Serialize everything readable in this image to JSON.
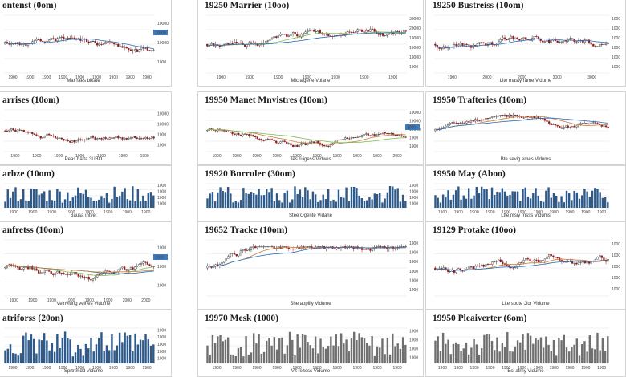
{
  "colors": {
    "up": "#2b2b2b",
    "down": "#8b1f1f",
    "bar": "#2d5a8a",
    "bar_gray": "#6f6f6f",
    "ma1": "#2a6bb0",
    "ma2": "#7dbb54",
    "ma3": "#c97a3a",
    "tag": "#3b7bbf"
  },
  "chart_data": [
    {
      "type": "candlestick",
      "title": "ontenst (0om)",
      "xlabel": "",
      "ticks_x": [
        "1900",
        "1900",
        "1900",
        "1900",
        "1900",
        "1900",
        "1900",
        "1900",
        "1900"
      ],
      "ticks_y": [
        "10000",
        "10000",
        "1000"
      ],
      "tag": "10000",
      "caption": "Mar raes bikate",
      "ylim": [
        0,
        100
      ],
      "series_name": "",
      "seed": 11,
      "trend": 0.0,
      "ma": [
        "ma1"
      ]
    },
    {
      "type": "candlestick",
      "title": "19250 Marrier (10oo)",
      "xlabel": "",
      "ticks_x": [
        "1900",
        "1900",
        "1900",
        "1900",
        "1900",
        "1900",
        "1900"
      ],
      "ticks_y": [
        "30000",
        "20000",
        "10000",
        "10000",
        "10000",
        "1000"
      ],
      "tag": "",
      "caption": "Mic algerie   Volane",
      "ylim": [
        0,
        100
      ],
      "seed": 22,
      "trend": 0.2,
      "ma": [
        "ma2",
        "ma1"
      ]
    },
    {
      "type": "candlestick",
      "title": "19250 Bustreiss (10om)",
      "xlabel": "",
      "ticks_x": [
        "1900",
        "2000",
        "2000",
        "3000",
        "3000"
      ],
      "ticks_y": [
        "1000",
        "1000",
        "1000",
        "1000",
        "1000",
        "1000"
      ],
      "tag": "",
      "caption": "Lite masty rame   Vidume",
      "ylim": [
        0,
        100
      ],
      "seed": 33,
      "trend": 0.0,
      "ma": [
        "ma1"
      ]
    },
    {
      "type": "candlestick",
      "title": "arrises (10om)",
      "xlabel": "",
      "ticks_x": [
        "1900",
        "1900",
        "1900",
        "1900",
        "1900",
        "1900",
        "1900"
      ],
      "ticks_y": [
        "10000",
        "10000",
        "1000",
        "1000"
      ],
      "tag": "",
      "caption": "Peas hatta 3UBO",
      "ylim": [
        0,
        100
      ],
      "seed": 44,
      "trend": -0.1,
      "ma": []
    },
    {
      "type": "candlestick",
      "title": "19950 Manet Mnvistres (10om)",
      "xlabel": "",
      "ticks_x": [
        "1900",
        "1900",
        "1900",
        "1900",
        "1900",
        "1900",
        "1900",
        "1900",
        "1900",
        "2000"
      ],
      "ticks_y": [
        "10000",
        "10000",
        "10000",
        "1000",
        "1000"
      ],
      "tag": "1000",
      "caption": "Tes ruigess   Vidwes",
      "ylim": [
        0,
        100
      ],
      "seed": 55,
      "trend": 0.0,
      "ma": [
        "ma3",
        "ma2"
      ]
    },
    {
      "type": "candlestick",
      "title": "19950 Trafteries (10om)",
      "xlabel": "",
      "ticks_x": [],
      "ticks_y": [],
      "tag": "",
      "caption": "Bte sevig emes   Vidums",
      "ylim": [
        0,
        100
      ],
      "seed": 66,
      "trend": 0.35,
      "ma": [
        "ma3",
        "ma1"
      ]
    },
    {
      "type": "bar",
      "title": "arbze (10om)",
      "xlabel": "",
      "ticks_x": [
        "1900",
        "1900",
        "1900",
        "1900",
        "1900",
        "1900",
        "1900",
        "1900"
      ],
      "ticks_y": [
        "1000",
        "1000",
        "1000",
        "1000"
      ],
      "tag": "",
      "caption": "Bausa intvet",
      "ylim": [
        0,
        100
      ],
      "seed": 77,
      "color": "bar"
    },
    {
      "type": "bar",
      "title": "19920 Bnrruler (30om)",
      "xlabel": "",
      "ticks_x": [],
      "ticks_y": [
        "1000",
        "1000",
        "1000",
        "1000"
      ],
      "tag": "",
      "caption": "Stee Ogente   Vidane",
      "ylim": [
        0,
        100
      ],
      "seed": 88,
      "color": "bar"
    },
    {
      "type": "bar",
      "title": "19950 May (Aboo)",
      "xlabel": "",
      "ticks_x": [
        "1900",
        "1900",
        "1900",
        "1900",
        "1900",
        "1900",
        "1900",
        "1900",
        "1900",
        "1900",
        "1900"
      ],
      "ticks_y": [],
      "tag": "",
      "caption": "Ltte ntsiy rnsss   Vidums",
      "ylim": [
        0,
        100
      ],
      "seed": 99,
      "color": "bar"
    },
    {
      "type": "candlestick",
      "title": "anfretss (10om)",
      "xlabel": "",
      "ticks_x": [
        "1900",
        "1900",
        "1900",
        "1900",
        "1900",
        "1900",
        "2000",
        "2000"
      ],
      "ticks_y": [
        "1000",
        "1000",
        "1000"
      ],
      "tag": "1000",
      "caption": "Veinviung veines   Vidume",
      "ylim": [
        0,
        100
      ],
      "seed": 110,
      "trend": -0.2,
      "ma": [
        "ma2",
        "ma1",
        "ma3"
      ]
    },
    {
      "type": "candlestick",
      "title": "19652 Tracke (10om)",
      "xlabel": "",
      "ticks_x": [],
      "ticks_y": [
        "1000",
        "1000",
        "1000",
        "1000",
        "1000",
        "1000"
      ],
      "tag": "",
      "caption": "She appilly   Vidume",
      "ylim": [
        0,
        100
      ],
      "seed": 121,
      "trend": 0.6,
      "ma": [
        "ma3",
        "ma1"
      ]
    },
    {
      "type": "candlestick",
      "title": "19129 Protake (10oo)",
      "xlabel": "",
      "ticks_x": [],
      "ticks_y": [
        "1000",
        "1000",
        "1000",
        "1000",
        "1000"
      ],
      "tag": "",
      "caption": "Lite soute Jlor   Vidume",
      "ylim": [
        0,
        100
      ],
      "seed": 132,
      "trend": 0.0,
      "ma": [
        "ma3",
        "ma1"
      ]
    },
    {
      "type": "bar",
      "title": "atriforss (20on)",
      "xlabel": "",
      "ticks_x": [
        "1900",
        "1900",
        "1900",
        "1900",
        "1900",
        "1900",
        "1900",
        "1900",
        "1900"
      ],
      "ticks_y": [
        "1000",
        "1000",
        "1000",
        "1000",
        "1000"
      ],
      "tag": "",
      "caption": "Sprtrtmdd   Vidume",
      "ylim": [
        0,
        100
      ],
      "seed": 143,
      "color": "bar"
    },
    {
      "type": "bar",
      "title": "19970 Mesk (1000)",
      "xlabel": "",
      "ticks_x": [
        "1900",
        "1900",
        "1900",
        "1900",
        "1900",
        "1900",
        "1900",
        "1900",
        "1900",
        "1900"
      ],
      "ticks_y": [
        "1000",
        "1000",
        "1000",
        "1000"
      ],
      "tag": "",
      "caption": "Vit reitess   Vidume",
      "ylim": [
        0,
        100
      ],
      "seed": 154,
      "color": "bar_gray"
    },
    {
      "type": "bar",
      "title": "19950 Pleaiverter (6om)",
      "xlabel": "",
      "ticks_x": [
        "1900",
        "1900",
        "1900",
        "1900",
        "1900",
        "1900",
        "1900",
        "1900",
        "1900",
        "1900",
        "1900"
      ],
      "ticks_y": [],
      "tag": "",
      "caption": "Bsi atrny   Vidume",
      "ylim": [
        0,
        100
      ],
      "seed": 165,
      "color": "bar_gray"
    }
  ]
}
